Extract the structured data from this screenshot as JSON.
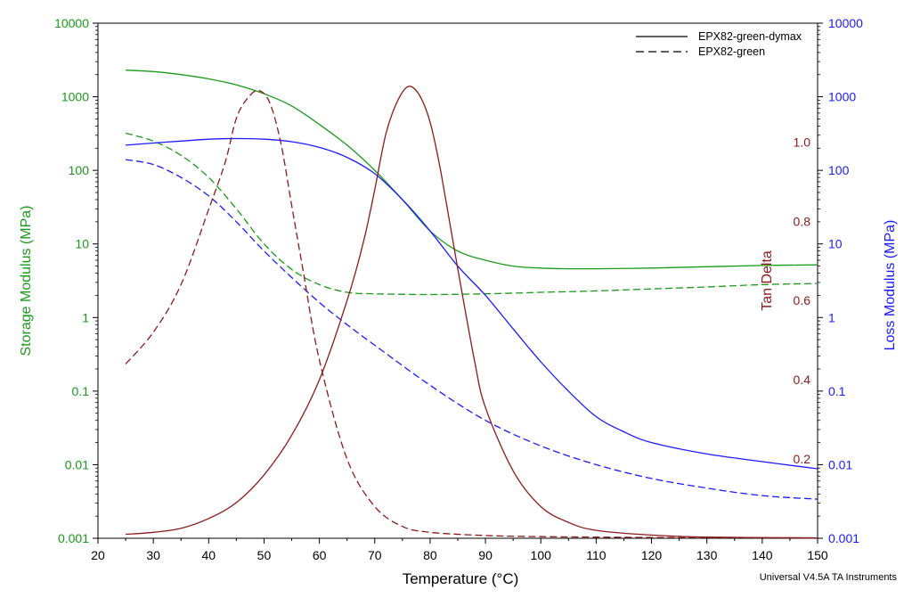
{
  "colors": {
    "storage": "#1a9a1a",
    "tan": "#8b1a1a",
    "loss": "#1a1aff",
    "axis": "#000000"
  },
  "chart_data": {
    "type": "line",
    "xlabel": "Temperature (°C)",
    "xlim": [
      20,
      150
    ],
    "xticks": [
      20,
      30,
      40,
      50,
      60,
      70,
      80,
      90,
      100,
      110,
      120,
      130,
      140,
      150
    ],
    "left_axis": {
      "label": "Storage Modulus (MPa)",
      "scale": "log",
      "lim": [
        0.001,
        10000
      ],
      "ticks": [
        "10000",
        "1000",
        "100",
        "10",
        "1",
        "0.1",
        "0.01",
        "0.001"
      ]
    },
    "right_axis": {
      "label": "Loss Modulus (MPa)",
      "scale": "log",
      "lim": [
        0.001,
        10000
      ],
      "ticks": [
        "10000",
        "1000",
        "100",
        "10",
        "1",
        "0.1",
        "0.01",
        "0.001"
      ]
    },
    "tan_axis": {
      "label": "Tan Delta",
      "scale": "linear",
      "lim": [
        0.0,
        1.3
      ],
      "ticks": [
        "0.2",
        "0.4",
        "0.6",
        "0.8",
        "1.0"
      ]
    },
    "legend": {
      "position": "top-right",
      "entries": [
        {
          "label": "EPX82-green-dymax",
          "style": "solid"
        },
        {
          "label": "EPX82-green",
          "style": "dashed"
        }
      ]
    },
    "series": [
      {
        "sample": "EPX82-green-dymax",
        "quantity": "Storage Modulus",
        "axis": "left",
        "style": "solid",
        "x": [
          25,
          30,
          35,
          40,
          45,
          50,
          55,
          60,
          65,
          70,
          75,
          80,
          85,
          90,
          95,
          100,
          105,
          110,
          120,
          130,
          140,
          150
        ],
        "y": [
          2300,
          2200,
          2000,
          1750,
          1450,
          1100,
          750,
          420,
          220,
          100,
          40,
          15,
          8,
          6,
          5,
          4.7,
          4.6,
          4.6,
          4.7,
          4.9,
          5.1,
          5.2
        ]
      },
      {
        "sample": "EPX82-green",
        "quantity": "Storage Modulus",
        "axis": "left",
        "style": "dashed",
        "x": [
          25,
          30,
          35,
          40,
          45,
          50,
          55,
          60,
          65,
          70,
          80,
          90,
          100,
          110,
          120,
          130,
          140,
          150
        ],
        "y": [
          320,
          250,
          160,
          80,
          30,
          10,
          4.5,
          2.8,
          2.2,
          2.1,
          2.05,
          2.1,
          2.2,
          2.3,
          2.45,
          2.6,
          2.8,
          2.9
        ]
      },
      {
        "sample": "EPX82-green-dymax",
        "quantity": "Loss Modulus",
        "axis": "right",
        "style": "solid",
        "x": [
          25,
          30,
          35,
          40,
          45,
          50,
          55,
          60,
          65,
          70,
          75,
          80,
          85,
          90,
          95,
          100,
          105,
          110,
          115,
          120,
          130,
          140,
          150
        ],
        "y": [
          220,
          235,
          250,
          265,
          270,
          265,
          245,
          205,
          150,
          90,
          40,
          15,
          5,
          2,
          0.7,
          0.25,
          0.1,
          0.045,
          0.028,
          0.02,
          0.014,
          0.011,
          0.0088
        ]
      },
      {
        "sample": "EPX82-green",
        "quantity": "Loss Modulus",
        "axis": "right",
        "style": "dashed",
        "x": [
          25,
          30,
          35,
          40,
          45,
          50,
          55,
          60,
          65,
          70,
          80,
          90,
          100,
          110,
          120,
          130,
          140,
          150
        ],
        "y": [
          140,
          120,
          80,
          45,
          20,
          8,
          3.5,
          1.6,
          0.8,
          0.42,
          0.12,
          0.04,
          0.018,
          0.01,
          0.0065,
          0.0048,
          0.0038,
          0.0034
        ]
      },
      {
        "sample": "EPX82-green-dymax",
        "quantity": "Tan Delta",
        "axis": "tan",
        "style": "solid",
        "x": [
          25,
          30,
          35,
          40,
          45,
          50,
          55,
          60,
          65,
          68,
          70,
          72,
          74,
          76,
          78,
          80,
          82,
          85,
          88,
          90,
          95,
          100,
          105,
          110,
          120,
          130,
          150
        ],
        "y": [
          0.01,
          0.015,
          0.025,
          0.05,
          0.09,
          0.16,
          0.26,
          0.4,
          0.6,
          0.75,
          0.88,
          1.02,
          1.1,
          1.14,
          1.12,
          1.05,
          0.92,
          0.68,
          0.45,
          0.33,
          0.17,
          0.08,
          0.04,
          0.02,
          0.008,
          0.003,
          0.001
        ]
      },
      {
        "sample": "EPX82-green",
        "quantity": "Tan Delta",
        "axis": "tan",
        "style": "dashed",
        "x": [
          25,
          30,
          35,
          40,
          43,
          45,
          47,
          49,
          51,
          53,
          55,
          57,
          60,
          65,
          70,
          75,
          80,
          90,
          100,
          110,
          120,
          130,
          150
        ],
        "y": [
          0.44,
          0.52,
          0.64,
          0.83,
          0.95,
          1.06,
          1.11,
          1.13,
          1.1,
          1.0,
          0.84,
          0.68,
          0.45,
          0.2,
          0.08,
          0.03,
          0.015,
          0.007,
          0.004,
          0.003,
          0.002,
          0.0015,
          0.001
        ]
      }
    ]
  },
  "footer": {
    "credit": "Universal V4.5A TA Instruments"
  }
}
